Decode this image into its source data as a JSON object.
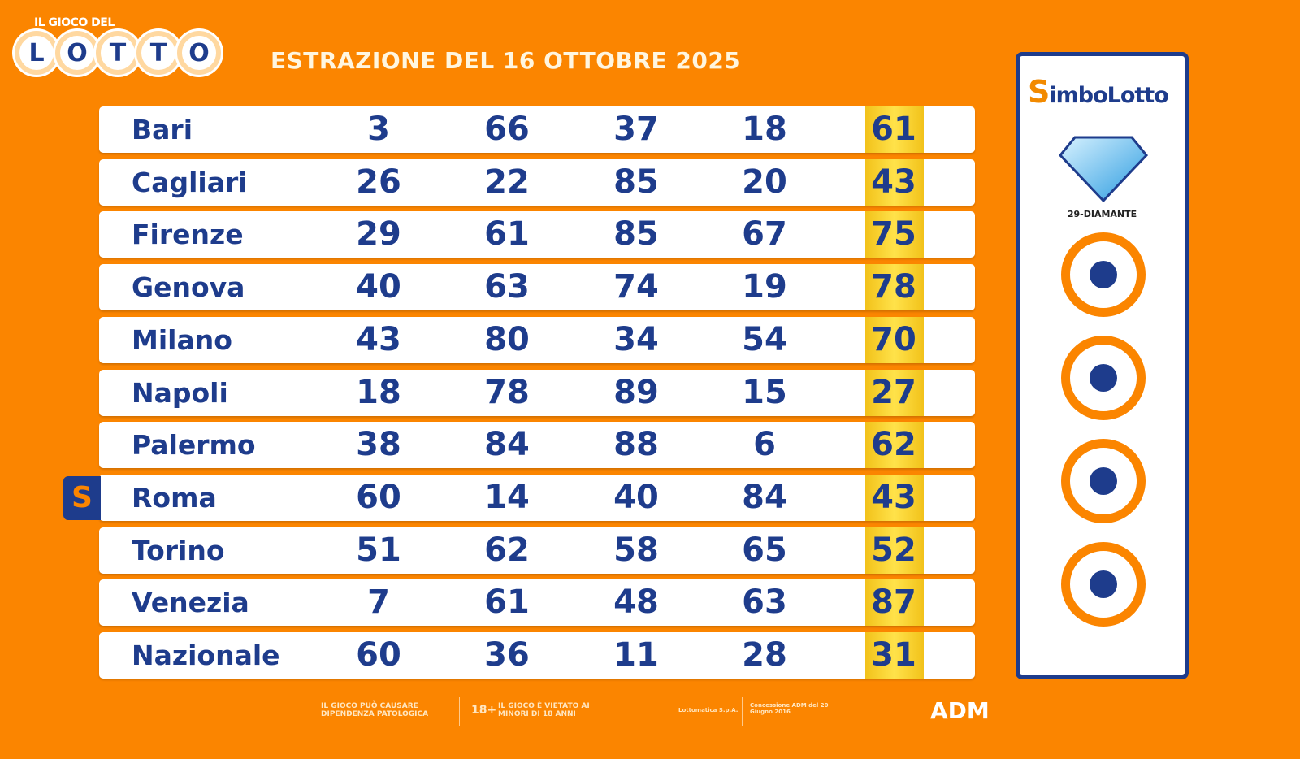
{
  "logo": {
    "top": "IL GIOCO DEL",
    "letters": [
      "L",
      "O",
      "T",
      "T",
      "O"
    ]
  },
  "title": "ESTRAZIONE DEL 16 OTTOBRE 2025",
  "rows": [
    {
      "city": "Bari",
      "numbers": [
        "3",
        "66",
        "37",
        "18",
        "61"
      ]
    },
    {
      "city": "Cagliari",
      "numbers": [
        "26",
        "22",
        "85",
        "20",
        "43"
      ]
    },
    {
      "city": "Firenze",
      "numbers": [
        "29",
        "61",
        "85",
        "67",
        "75"
      ]
    },
    {
      "city": "Genova",
      "numbers": [
        "40",
        "63",
        "74",
        "19",
        "78"
      ]
    },
    {
      "city": "Milano",
      "numbers": [
        "43",
        "80",
        "34",
        "54",
        "70"
      ]
    },
    {
      "city": "Napoli",
      "numbers": [
        "18",
        "78",
        "89",
        "15",
        "27"
      ]
    },
    {
      "city": "Palermo",
      "numbers": [
        "38",
        "84",
        "88",
        "6",
        "62"
      ]
    },
    {
      "city": "Roma",
      "numbers": [
        "60",
        "14",
        "40",
        "84",
        "43"
      ]
    },
    {
      "city": "Torino",
      "numbers": [
        "51",
        "62",
        "58",
        "65",
        "52"
      ]
    },
    {
      "city": "Venezia",
      "numbers": [
        "7",
        "61",
        "48",
        "63",
        "87"
      ]
    },
    {
      "city": "Nazionale",
      "numbers": [
        "60",
        "36",
        "11",
        "28",
        "31"
      ]
    }
  ],
  "simbolotto_marker": "S",
  "simbolotto": {
    "brand_s": "S",
    "brand_rest": "imboLotto",
    "symbol": "29-DIAMANTE",
    "slots": 4
  },
  "footer": {
    "warning": "IL GIOCO PUÒ CAUSARE DIPENDENZA PATOLOGICA",
    "age": "18+",
    "minors": "IL GIOCO È VIETATO AI MINORI DI 18 ANNI",
    "operator": "Lottomatica S.p.A.",
    "concession": "Concessione ADM del 20 Giugno 2016",
    "adm": "ADM"
  }
}
